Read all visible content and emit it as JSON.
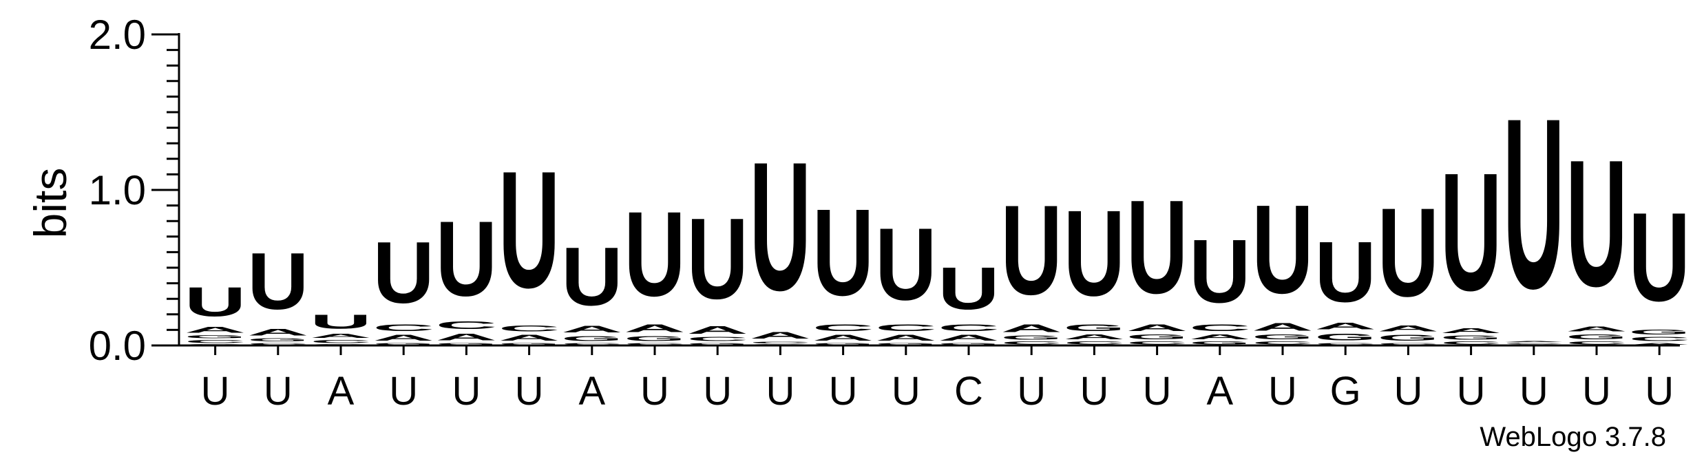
{
  "chart_data": {
    "type": "sequence-logo",
    "ylabel": "bits",
    "ylim": [
      0,
      2.0
    ],
    "yticks": [
      {
        "value": 0.0,
        "label": "0.0"
      },
      {
        "value": 1.0,
        "label": "1.0"
      },
      {
        "value": 2.0,
        "label": "2.0"
      }
    ],
    "colors": {
      "U": "#ff8c00",
      "A": "#ff8c00",
      "C": "#0000ff",
      "G": "#0000ff"
    },
    "positions": [
      {
        "label": "U",
        "stack": [
          [
            "G",
            0.01
          ],
          [
            "C",
            0.03
          ],
          [
            "G",
            0.03
          ],
          [
            "A",
            0.06
          ],
          [
            "U",
            0.3
          ]
        ]
      },
      {
        "label": "U",
        "stack": [
          [
            "C",
            0.02
          ],
          [
            "G",
            0.03
          ],
          [
            "A",
            0.07
          ],
          [
            "U",
            0.58
          ]
        ]
      },
      {
        "label": "A",
        "stack": [
          [
            "G",
            0.01
          ],
          [
            "C",
            0.03
          ],
          [
            "A",
            0.04
          ],
          [
            "U",
            0.14
          ]
        ]
      },
      {
        "label": "U",
        "stack": [
          [
            "G",
            0.02
          ],
          [
            "A",
            0.06
          ],
          [
            "C",
            0.07
          ],
          [
            "U",
            0.63
          ]
        ]
      },
      {
        "label": "U",
        "stack": [
          [
            "G",
            0.02
          ],
          [
            "A",
            0.07
          ],
          [
            "C",
            0.08
          ],
          [
            "U",
            0.77
          ]
        ]
      },
      {
        "label": "U",
        "stack": [
          [
            "G",
            0.02
          ],
          [
            "A",
            0.06
          ],
          [
            "C",
            0.06
          ],
          [
            "U",
            1.2
          ]
        ]
      },
      {
        "label": "A",
        "stack": [
          [
            "C",
            0.02
          ],
          [
            "G",
            0.05
          ],
          [
            "A",
            0.07
          ],
          [
            "U",
            0.6
          ]
        ]
      },
      {
        "label": "U",
        "stack": [
          [
            "C",
            0.02
          ],
          [
            "G",
            0.05
          ],
          [
            "A",
            0.08
          ],
          [
            "U",
            0.87
          ]
        ]
      },
      {
        "label": "U",
        "stack": [
          [
            "G",
            0.02
          ],
          [
            "C",
            0.04
          ],
          [
            "A",
            0.08
          ],
          [
            "U",
            0.83
          ]
        ]
      },
      {
        "label": "U",
        "stack": [
          [
            "G",
            0.01
          ],
          [
            "C",
            0.02
          ],
          [
            "A",
            0.07
          ],
          [
            "U",
            1.32
          ]
        ]
      },
      {
        "label": "U",
        "stack": [
          [
            "G",
            0.02
          ],
          [
            "A",
            0.06
          ],
          [
            "C",
            0.07
          ],
          [
            "U",
            0.89
          ]
        ]
      },
      {
        "label": "U",
        "stack": [
          [
            "G",
            0.02
          ],
          [
            "A",
            0.06
          ],
          [
            "C",
            0.07
          ],
          [
            "U",
            0.74
          ]
        ]
      },
      {
        "label": "C",
        "stack": [
          [
            "G",
            0.02
          ],
          [
            "A",
            0.06
          ],
          [
            "C",
            0.07
          ],
          [
            "U",
            0.43
          ]
        ]
      },
      {
        "label": "U",
        "stack": [
          [
            "C",
            0.03
          ],
          [
            "G",
            0.04
          ],
          [
            "A",
            0.08
          ],
          [
            "U",
            0.92
          ]
        ]
      },
      {
        "label": "U",
        "stack": [
          [
            "C",
            0.03
          ],
          [
            "A",
            0.05
          ],
          [
            "G",
            0.07
          ],
          [
            "U",
            0.88
          ]
        ]
      },
      {
        "label": "U",
        "stack": [
          [
            "C",
            0.03
          ],
          [
            "G",
            0.05
          ],
          [
            "A",
            0.07
          ],
          [
            "U",
            0.96
          ]
        ]
      },
      {
        "label": "A",
        "stack": [
          [
            "G",
            0.03
          ],
          [
            "A",
            0.05
          ],
          [
            "C",
            0.07
          ],
          [
            "U",
            0.65
          ]
        ]
      },
      {
        "label": "U",
        "stack": [
          [
            "C",
            0.03
          ],
          [
            "G",
            0.05
          ],
          [
            "A",
            0.08
          ],
          [
            "U",
            0.91
          ]
        ]
      },
      {
        "label": "G",
        "stack": [
          [
            "C",
            0.02
          ],
          [
            "G",
            0.07
          ],
          [
            "A",
            0.07
          ],
          [
            "U",
            0.62
          ]
        ]
      },
      {
        "label": "U",
        "stack": [
          [
            "C",
            0.02
          ],
          [
            "G",
            0.06
          ],
          [
            "A",
            0.06
          ],
          [
            "U",
            0.91
          ]
        ]
      },
      {
        "label": "U",
        "stack": [
          [
            "C",
            0.03
          ],
          [
            "G",
            0.04
          ],
          [
            "A",
            0.05
          ],
          [
            "U",
            1.21
          ]
        ]
      },
      {
        "label": "U",
        "stack": [
          [
            "G",
            0.01
          ],
          [
            "C",
            0.01
          ],
          [
            "A",
            0.01
          ],
          [
            "U",
            1.75
          ]
        ]
      },
      {
        "label": "U",
        "stack": [
          [
            "C",
            0.03
          ],
          [
            "G",
            0.05
          ],
          [
            "A",
            0.05
          ],
          [
            "U",
            1.3
          ]
        ]
      },
      {
        "label": "U",
        "stack": [
          [
            "A",
            0.02
          ],
          [
            "C",
            0.04
          ],
          [
            "G",
            0.05
          ],
          [
            "U",
            0.91
          ]
        ]
      }
    ]
  },
  "footer": {
    "credit": "WebLogo 3.7.8"
  }
}
